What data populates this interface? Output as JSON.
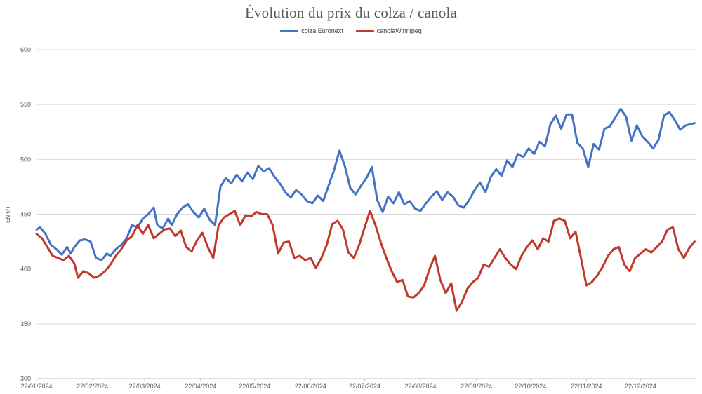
{
  "chart_data": {
    "type": "line",
    "title": "Évolution du prix du colza / canola",
    "xlabel": "",
    "ylabel": "EN €/T",
    "ylim": [
      300,
      600
    ],
    "yticks": [
      300,
      350,
      400,
      450,
      500,
      550,
      600
    ],
    "xlim": [
      "2024-01-22",
      "2025-01-22"
    ],
    "xtick_labels": [
      "22/01/2024",
      "22/02/2024",
      "22/03/2024",
      "22/04/2024",
      "22/05/2024",
      "22/06/2024",
      "22/07/2024",
      "22/08/2024",
      "22/09/2024",
      "22/10/2024",
      "22/11/2024",
      "22/12/2024"
    ],
    "xtick_dates": [
      "2024-01-22",
      "2024-02-22",
      "2024-03-22",
      "2024-04-22",
      "2024-05-22",
      "2024-06-22",
      "2024-07-22",
      "2024-08-22",
      "2024-09-22",
      "2024-10-22",
      "2024-11-22",
      "2024-12-22"
    ],
    "grid": "horizontal",
    "legend_position": "top-center",
    "series": [
      {
        "name": "colza Euronext",
        "color": "#4472c4",
        "points": [
          [
            "2024-01-22",
            436
          ],
          [
            "2024-01-24",
            438
          ],
          [
            "2024-01-27",
            432
          ],
          [
            "2024-01-30",
            422
          ],
          [
            "2024-02-02",
            418
          ],
          [
            "2024-02-05",
            413
          ],
          [
            "2024-02-08",
            420
          ],
          [
            "2024-02-10",
            414
          ],
          [
            "2024-02-12",
            420
          ],
          [
            "2024-02-15",
            426
          ],
          [
            "2024-02-18",
            427
          ],
          [
            "2024-02-21",
            425
          ],
          [
            "2024-02-24",
            410
          ],
          [
            "2024-02-27",
            408
          ],
          [
            "2024-03-01",
            414
          ],
          [
            "2024-03-03",
            412
          ],
          [
            "2024-03-06",
            418
          ],
          [
            "2024-03-09",
            422
          ],
          [
            "2024-03-12",
            428
          ],
          [
            "2024-03-15",
            440
          ],
          [
            "2024-03-18",
            438
          ],
          [
            "2024-03-21",
            446
          ],
          [
            "2024-03-24",
            450
          ],
          [
            "2024-03-27",
            456
          ],
          [
            "2024-03-29",
            440
          ],
          [
            "2024-04-01",
            437
          ],
          [
            "2024-04-04",
            446
          ],
          [
            "2024-04-06",
            440
          ],
          [
            "2024-04-09",
            450
          ],
          [
            "2024-04-12",
            456
          ],
          [
            "2024-04-15",
            459
          ],
          [
            "2024-04-18",
            452
          ],
          [
            "2024-04-21",
            447
          ],
          [
            "2024-04-24",
            455
          ],
          [
            "2024-04-27",
            445
          ],
          [
            "2024-04-30",
            440
          ],
          [
            "2024-05-03",
            475
          ],
          [
            "2024-05-06",
            483
          ],
          [
            "2024-05-09",
            478
          ],
          [
            "2024-05-12",
            486
          ],
          [
            "2024-05-15",
            480
          ],
          [
            "2024-05-18",
            488
          ],
          [
            "2024-05-21",
            482
          ],
          [
            "2024-05-24",
            494
          ],
          [
            "2024-05-27",
            489
          ],
          [
            "2024-05-30",
            492
          ],
          [
            "2024-06-02",
            484
          ],
          [
            "2024-06-05",
            478
          ],
          [
            "2024-06-08",
            470
          ],
          [
            "2024-06-11",
            465
          ],
          [
            "2024-06-14",
            472
          ],
          [
            "2024-06-17",
            468
          ],
          [
            "2024-06-20",
            462
          ],
          [
            "2024-06-23",
            460
          ],
          [
            "2024-06-26",
            467
          ],
          [
            "2024-06-29",
            462
          ],
          [
            "2024-07-02",
            476
          ],
          [
            "2024-07-05",
            490
          ],
          [
            "2024-07-08",
            508
          ],
          [
            "2024-07-11",
            494
          ],
          [
            "2024-07-14",
            474
          ],
          [
            "2024-07-17",
            468
          ],
          [
            "2024-07-20",
            476
          ],
          [
            "2024-07-23",
            483
          ],
          [
            "2024-07-26",
            493
          ],
          [
            "2024-07-29",
            463
          ],
          [
            "2024-08-01",
            452
          ],
          [
            "2024-08-04",
            466
          ],
          [
            "2024-08-07",
            460
          ],
          [
            "2024-08-10",
            470
          ],
          [
            "2024-08-13",
            459
          ],
          [
            "2024-08-16",
            462
          ],
          [
            "2024-08-19",
            455
          ],
          [
            "2024-08-22",
            453
          ],
          [
            "2024-08-25",
            460
          ],
          [
            "2024-08-28",
            466
          ],
          [
            "2024-08-31",
            471
          ],
          [
            "2024-09-03",
            463
          ],
          [
            "2024-09-06",
            470
          ],
          [
            "2024-09-09",
            466
          ],
          [
            "2024-09-12",
            458
          ],
          [
            "2024-09-15",
            456
          ],
          [
            "2024-09-18",
            463
          ],
          [
            "2024-09-21",
            472
          ],
          [
            "2024-09-24",
            479
          ],
          [
            "2024-09-27",
            470
          ],
          [
            "2024-09-30",
            484
          ],
          [
            "2024-10-03",
            491
          ],
          [
            "2024-10-06",
            485
          ],
          [
            "2024-10-09",
            499
          ],
          [
            "2024-10-12",
            493
          ],
          [
            "2024-10-15",
            505
          ],
          [
            "2024-10-18",
            502
          ],
          [
            "2024-10-21",
            510
          ],
          [
            "2024-10-24",
            505
          ],
          [
            "2024-10-27",
            516
          ],
          [
            "2024-10-30",
            512
          ],
          [
            "2024-11-02",
            532
          ],
          [
            "2024-11-05",
            540
          ],
          [
            "2024-11-08",
            528
          ],
          [
            "2024-11-11",
            541
          ],
          [
            "2024-11-14",
            541
          ],
          [
            "2024-11-17",
            515
          ],
          [
            "2024-11-20",
            510
          ],
          [
            "2024-11-23",
            493
          ],
          [
            "2024-11-26",
            514
          ],
          [
            "2024-11-29",
            509
          ],
          [
            "2024-12-02",
            528
          ],
          [
            "2024-12-05",
            530
          ],
          [
            "2024-12-08",
            538
          ],
          [
            "2024-12-11",
            546
          ],
          [
            "2024-12-14",
            539
          ],
          [
            "2024-12-17",
            517
          ],
          [
            "2024-12-20",
            531
          ],
          [
            "2024-12-23",
            521
          ],
          [
            "2024-12-26",
            516
          ],
          [
            "2024-12-29",
            510
          ],
          [
            "2025-01-01",
            518
          ],
          [
            "2025-01-04",
            540
          ],
          [
            "2025-01-07",
            543
          ],
          [
            "2025-01-10",
            536
          ],
          [
            "2025-01-13",
            527
          ],
          [
            "2025-01-16",
            531
          ],
          [
            "2025-01-21",
            533
          ]
        ]
      },
      {
        "name": "canolaWinnipeg",
        "color": "#c0392b",
        "points": [
          [
            "2024-01-22",
            432
          ],
          [
            "2024-01-25",
            428
          ],
          [
            "2024-01-28",
            420
          ],
          [
            "2024-01-31",
            412
          ],
          [
            "2024-02-03",
            410
          ],
          [
            "2024-02-06",
            408
          ],
          [
            "2024-02-09",
            412
          ],
          [
            "2024-02-12",
            405
          ],
          [
            "2024-02-14",
            392
          ],
          [
            "2024-02-17",
            398
          ],
          [
            "2024-02-20",
            396
          ],
          [
            "2024-02-23",
            392
          ],
          [
            "2024-02-26",
            394
          ],
          [
            "2024-02-29",
            398
          ],
          [
            "2024-03-03",
            404
          ],
          [
            "2024-03-06",
            412
          ],
          [
            "2024-03-09",
            418
          ],
          [
            "2024-03-12",
            426
          ],
          [
            "2024-03-15",
            430
          ],
          [
            "2024-03-18",
            440
          ],
          [
            "2024-03-21",
            432
          ],
          [
            "2024-03-24",
            440
          ],
          [
            "2024-03-27",
            428
          ],
          [
            "2024-03-30",
            432
          ],
          [
            "2024-04-02",
            436
          ],
          [
            "2024-04-05",
            437
          ],
          [
            "2024-04-08",
            430
          ],
          [
            "2024-04-11",
            435
          ],
          [
            "2024-04-14",
            420
          ],
          [
            "2024-04-17",
            416
          ],
          [
            "2024-04-20",
            426
          ],
          [
            "2024-04-23",
            433
          ],
          [
            "2024-04-26",
            420
          ],
          [
            "2024-04-29",
            410
          ],
          [
            "2024-05-02",
            440
          ],
          [
            "2024-05-05",
            447
          ],
          [
            "2024-05-08",
            450
          ],
          [
            "2024-05-11",
            453
          ],
          [
            "2024-05-14",
            440
          ],
          [
            "2024-05-17",
            449
          ],
          [
            "2024-05-20",
            448
          ],
          [
            "2024-05-23",
            452
          ],
          [
            "2024-05-26",
            450
          ],
          [
            "2024-05-29",
            450
          ],
          [
            "2024-06-01",
            440
          ],
          [
            "2024-06-04",
            414
          ],
          [
            "2024-06-07",
            424
          ],
          [
            "2024-06-10",
            425
          ],
          [
            "2024-06-13",
            410
          ],
          [
            "2024-06-16",
            412
          ],
          [
            "2024-06-19",
            408
          ],
          [
            "2024-06-22",
            410
          ],
          [
            "2024-06-25",
            401
          ],
          [
            "2024-06-28",
            410
          ],
          [
            "2024-07-01",
            422
          ],
          [
            "2024-07-04",
            441
          ],
          [
            "2024-07-07",
            444
          ],
          [
            "2024-07-10",
            436
          ],
          [
            "2024-07-13",
            415
          ],
          [
            "2024-07-16",
            410
          ],
          [
            "2024-07-19",
            422
          ],
          [
            "2024-07-22",
            438
          ],
          [
            "2024-07-25",
            453
          ],
          [
            "2024-07-28",
            440
          ],
          [
            "2024-07-31",
            424
          ],
          [
            "2024-08-03",
            410
          ],
          [
            "2024-08-06",
            398
          ],
          [
            "2024-08-09",
            388
          ],
          [
            "2024-08-12",
            390
          ],
          [
            "2024-08-15",
            375
          ],
          [
            "2024-08-18",
            374
          ],
          [
            "2024-08-21",
            378
          ],
          [
            "2024-08-24",
            385
          ],
          [
            "2024-08-27",
            400
          ],
          [
            "2024-08-30",
            412
          ],
          [
            "2024-09-02",
            390
          ],
          [
            "2024-09-05",
            378
          ],
          [
            "2024-09-08",
            387
          ],
          [
            "2024-09-11",
            362
          ],
          [
            "2024-09-14",
            370
          ],
          [
            "2024-09-17",
            382
          ],
          [
            "2024-09-20",
            388
          ],
          [
            "2024-09-23",
            392
          ],
          [
            "2024-09-26",
            404
          ],
          [
            "2024-09-29",
            402
          ],
          [
            "2024-10-02",
            410
          ],
          [
            "2024-10-05",
            418
          ],
          [
            "2024-10-08",
            410
          ],
          [
            "2024-10-11",
            404
          ],
          [
            "2024-10-14",
            400
          ],
          [
            "2024-10-17",
            412
          ],
          [
            "2024-10-20",
            420
          ],
          [
            "2024-10-23",
            426
          ],
          [
            "2024-10-26",
            418
          ],
          [
            "2024-10-29",
            428
          ],
          [
            "2024-11-01",
            425
          ],
          [
            "2024-11-04",
            444
          ],
          [
            "2024-11-07",
            446
          ],
          [
            "2024-11-10",
            444
          ],
          [
            "2024-11-13",
            428
          ],
          [
            "2024-11-16",
            434
          ],
          [
            "2024-11-19",
            410
          ],
          [
            "2024-11-22",
            385
          ],
          [
            "2024-11-25",
            388
          ],
          [
            "2024-11-28",
            394
          ],
          [
            "2024-12-01",
            402
          ],
          [
            "2024-12-04",
            412
          ],
          [
            "2024-12-07",
            418
          ],
          [
            "2024-12-10",
            420
          ],
          [
            "2024-12-13",
            404
          ],
          [
            "2024-12-16",
            398
          ],
          [
            "2024-12-19",
            410
          ],
          [
            "2024-12-22",
            414
          ],
          [
            "2024-12-25",
            418
          ],
          [
            "2024-12-28",
            415
          ],
          [
            "2024-12-31",
            420
          ],
          [
            "2025-01-03",
            425
          ],
          [
            "2025-01-06",
            436
          ],
          [
            "2025-01-09",
            438
          ],
          [
            "2025-01-12",
            418
          ],
          [
            "2025-01-15",
            410
          ],
          [
            "2025-01-18",
            419
          ],
          [
            "2025-01-21",
            425
          ]
        ]
      }
    ]
  }
}
